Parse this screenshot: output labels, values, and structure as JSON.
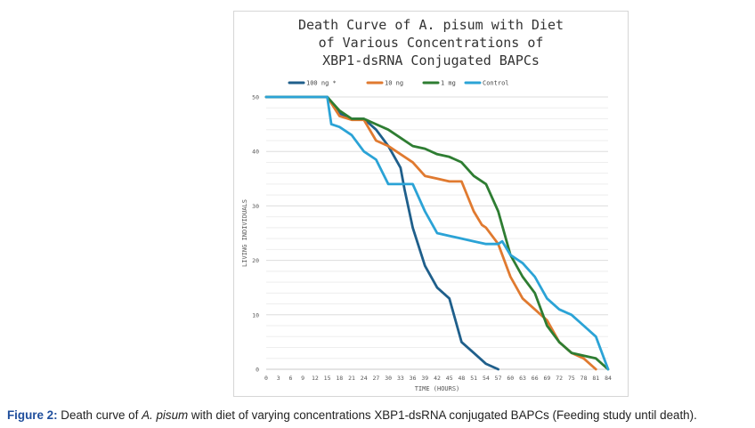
{
  "chart_data": {
    "type": "line",
    "title_lines": [
      "Death Curve of A. pisum with Diet",
      "of Various Concentrations of",
      "XBP1-dsRNA Conjugated BAPCs"
    ],
    "xlabel": "TIME (HOURS)",
    "ylabel": "LIVING INDIVIDUALS",
    "xlim": [
      0,
      84
    ],
    "ylim": [
      0,
      50
    ],
    "x_ticks": [
      0,
      3,
      6,
      9,
      12,
      15,
      18,
      21,
      24,
      27,
      30,
      33,
      36,
      39,
      42,
      45,
      48,
      51,
      54,
      57,
      60,
      63,
      66,
      69,
      72,
      75,
      78,
      81,
      84
    ],
    "y_ticks": [
      0,
      10,
      20,
      30,
      40,
      50
    ],
    "grid": true,
    "legend_position": "top",
    "series": [
      {
        "name": "100 ng *",
        "color": "#1f5f8b",
        "x": [
          0,
          9,
          12,
          15,
          18,
          21,
          24,
          27,
          30,
          33,
          34,
          36,
          39,
          42,
          45,
          48,
          51,
          54,
          57
        ],
        "y": [
          50,
          50,
          50,
          50,
          47,
          46,
          46,
          44,
          41,
          37,
          33,
          26,
          19,
          15,
          13,
          5,
          3,
          1,
          0
        ]
      },
      {
        "name": "10 ng",
        "color": "#e07a30",
        "x": [
          0,
          9,
          12,
          15,
          18,
          21,
          24,
          27,
          30,
          33,
          36,
          39,
          42,
          45,
          48,
          51,
          53,
          54,
          56,
          57,
          60,
          63,
          66,
          69,
          72,
          75,
          78,
          81
        ],
        "y": [
          50,
          50,
          50,
          50,
          46.5,
          45.8,
          45.8,
          42,
          41,
          39.5,
          38,
          35.5,
          35,
          34.5,
          34.5,
          29,
          26.5,
          26,
          24,
          23,
          17,
          13,
          11,
          9,
          5,
          3,
          2,
          0
        ]
      },
      {
        "name": "1 mg",
        "color": "#2e7d32",
        "x": [
          0,
          9,
          12,
          15,
          18,
          21,
          24,
          27,
          30,
          33,
          36,
          39,
          42,
          45,
          48,
          51,
          54,
          57,
          60,
          63,
          66,
          69,
          72,
          75,
          78,
          81,
          84
        ],
        "y": [
          50,
          50,
          50,
          50,
          47.5,
          46,
          46,
          45,
          44,
          42.5,
          41,
          40.5,
          39.5,
          39,
          38,
          35.5,
          34,
          29,
          21,
          17,
          14,
          8,
          5,
          3,
          2.5,
          2,
          0
        ]
      },
      {
        "name": "Control",
        "color": "#2ba3d6",
        "x": [
          0,
          9,
          12,
          15,
          16,
          18,
          21,
          24,
          27,
          30,
          33,
          36,
          39,
          42,
          45,
          48,
          51,
          54,
          57,
          58,
          60,
          63,
          66,
          69,
          72,
          75,
          78,
          81,
          84
        ],
        "y": [
          50,
          50,
          50,
          50,
          45,
          44.5,
          43,
          40,
          38.5,
          34,
          34,
          34,
          29,
          25,
          24.5,
          24,
          23.5,
          23,
          23,
          23.5,
          21,
          19.5,
          17,
          13,
          11,
          10,
          8,
          6,
          0
        ]
      }
    ]
  },
  "caption": {
    "label": "Figure 2:",
    "text_before": " Death curve of ",
    "species": "A. pisum",
    "text_after": " with diet of varying concentrations XBP1-dsRNA conjugated BAPCs (Feeding study until death)."
  }
}
